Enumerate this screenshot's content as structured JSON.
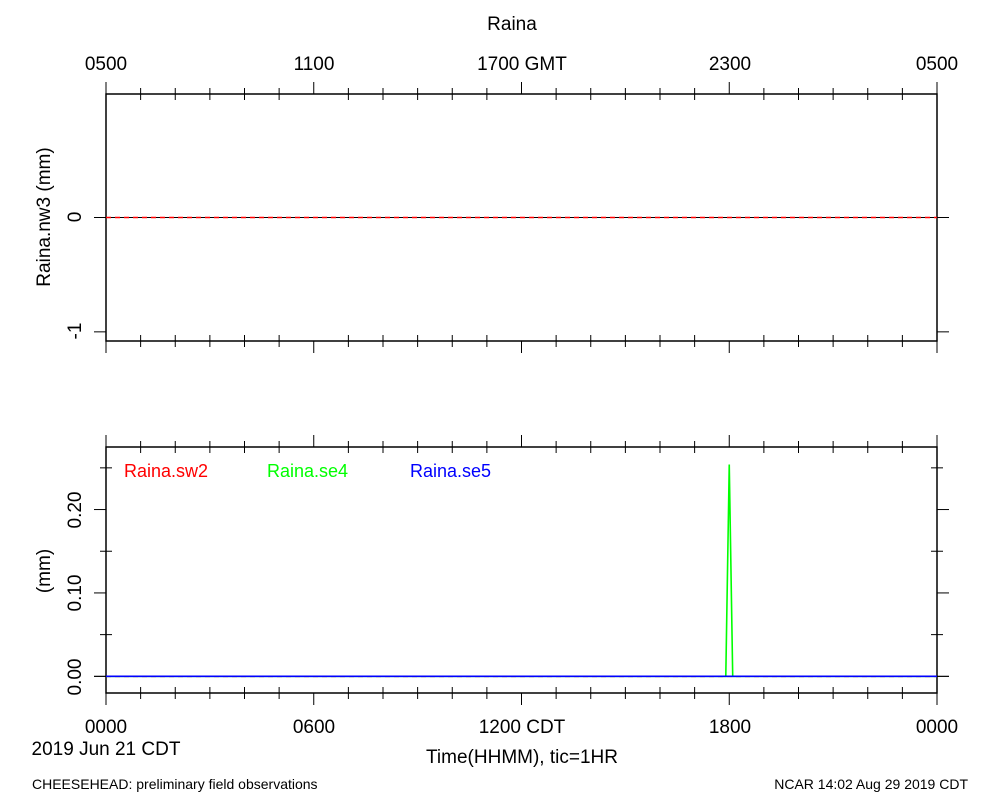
{
  "title": "Raina",
  "top_axis_ticks": [
    "0500",
    "1100",
    "1700 GMT",
    "2300",
    "0500"
  ],
  "bottom_axis_ticks": [
    "0000",
    "0600",
    "1200 CDT",
    "1800",
    "0000"
  ],
  "date_label": "2019 Jun 21 CDT",
  "xlabel": "Time(HHMM), tic=1HR",
  "footer_left": "CHEESEHEAD: preliminary field observations",
  "footer_right": "NCAR 14:02 Aug 29 2019 CDT",
  "colors": {
    "red": "#ff0000",
    "green": "#00ff00",
    "blue": "#0000ff"
  },
  "chart_data": [
    {
      "type": "line",
      "ylabel": "Raina.nw3 (mm)",
      "yticks": [
        "0",
        "-1"
      ],
      "ylim": [
        -1.08,
        1.08
      ],
      "xlim_hours": [
        0,
        24
      ],
      "series": [
        {
          "name": "",
          "color": "#ff0000",
          "dashed": true,
          "x": [
            0,
            24
          ],
          "y": [
            0,
            0
          ]
        }
      ]
    },
    {
      "type": "line",
      "ylabel": "(mm)",
      "yticks": [
        "0.00",
        "0.10",
        "0.20"
      ],
      "ylim": [
        -0.02,
        0.275
      ],
      "xlim_hours": [
        0,
        24
      ],
      "legend": [
        "Raina.sw2",
        "Raina.se4",
        "Raina.se5"
      ],
      "series": [
        {
          "name": "Raina.sw2",
          "color": "#ff0000",
          "dashed": true,
          "x": [
            0,
            24
          ],
          "y": [
            0,
            0
          ]
        },
        {
          "name": "Raina.se4",
          "color": "#00ff00",
          "dashed": false,
          "x": [
            0,
            17.9,
            18.0,
            18.1,
            24
          ],
          "y": [
            0,
            0,
            0.254,
            0,
            0
          ]
        },
        {
          "name": "Raina.se5",
          "color": "#0000ff",
          "dashed": false,
          "x": [
            0,
            24
          ],
          "y": [
            0,
            0
          ]
        }
      ]
    }
  ]
}
